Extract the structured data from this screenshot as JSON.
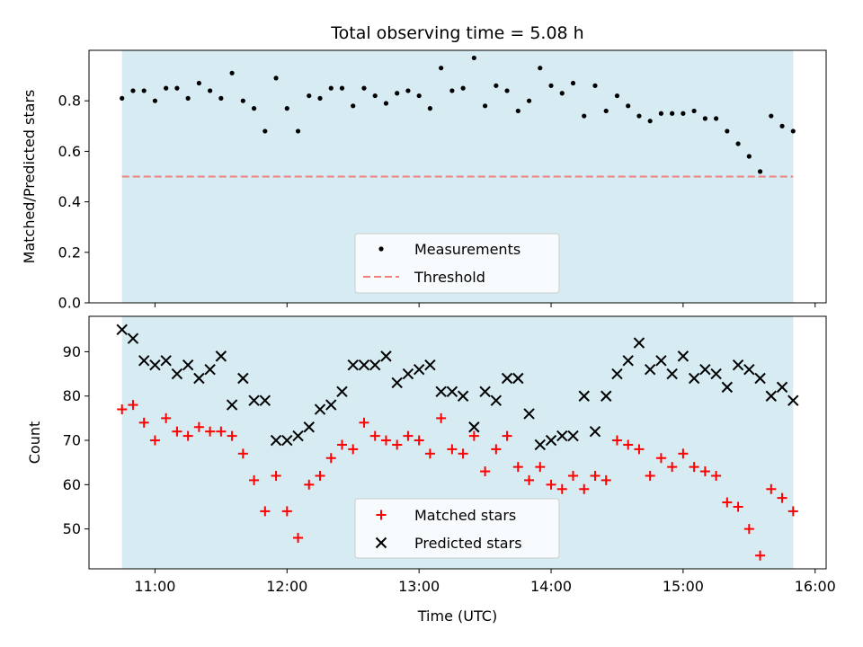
{
  "chart_data": [
    {
      "type": "scatter",
      "title": "Total observing time = 5.08 h",
      "xlabel": "",
      "ylabel": "Matched/Predicted stars",
      "ylim": [
        0,
        1.0
      ],
      "yticks": [
        "0.0",
        "0.2",
        "0.4",
        "0.6",
        "0.8"
      ],
      "xlim": [
        "10:30",
        "16:05"
      ],
      "shaded_span": [
        "10:45",
        "15:50"
      ],
      "shade_color": "#add8e6",
      "grid": false,
      "legend": {
        "placement": "lower center",
        "entries": [
          "Measurements",
          "Threshold"
        ]
      },
      "threshold": {
        "name": "Threshold",
        "value": 0.5,
        "color": "#f08080",
        "style": "dashed"
      },
      "series": [
        {
          "name": "Measurements",
          "marker": "dot",
          "color": "#000000",
          "x": [
            "10:45",
            "10:50",
            "10:55",
            "11:00",
            "11:05",
            "11:10",
            "11:15",
            "11:20",
            "11:25",
            "11:30",
            "11:35",
            "11:40",
            "11:45",
            "11:50",
            "11:55",
            "12:00",
            "12:05",
            "12:10",
            "12:15",
            "12:20",
            "12:25",
            "12:30",
            "12:35",
            "12:40",
            "12:45",
            "12:50",
            "12:55",
            "13:00",
            "13:05",
            "13:10",
            "13:15",
            "13:20",
            "13:25",
            "13:30",
            "13:35",
            "13:40",
            "13:45",
            "13:50",
            "13:55",
            "14:00",
            "14:05",
            "14:10",
            "14:15",
            "14:20",
            "14:25",
            "14:30",
            "14:35",
            "14:40",
            "14:45",
            "14:50",
            "14:55",
            "15:00",
            "15:05",
            "15:10",
            "15:15",
            "15:20",
            "15:25",
            "15:30",
            "15:35",
            "15:40",
            "15:45",
            "15:50"
          ],
          "y": [
            0.81,
            0.84,
            0.84,
            0.8,
            0.85,
            0.85,
            0.81,
            0.87,
            0.84,
            0.81,
            0.91,
            0.8,
            0.77,
            0.68,
            0.89,
            0.77,
            0.68,
            0.82,
            0.81,
            0.85,
            0.85,
            0.78,
            0.85,
            0.82,
            0.79,
            0.83,
            0.84,
            0.82,
            0.77,
            0.93,
            0.84,
            0.85,
            0.97,
            0.78,
            0.86,
            0.84,
            0.76,
            0.8,
            0.93,
            0.86,
            0.83,
            0.87,
            0.74,
            0.86,
            0.76,
            0.82,
            0.78,
            0.74,
            0.72,
            0.75,
            0.75,
            0.75,
            0.76,
            0.73,
            0.73,
            0.68,
            0.63,
            0.58,
            0.52,
            0.74,
            0.7,
            0.68
          ]
        }
      ]
    },
    {
      "type": "scatter",
      "title": "",
      "xlabel": "Time (UTC)",
      "ylabel": "Count",
      "ylim": [
        41,
        98
      ],
      "yticks": [
        "50",
        "60",
        "70",
        "80",
        "90"
      ],
      "xticks": [
        "11:00",
        "12:00",
        "13:00",
        "14:00",
        "15:00",
        "16:00"
      ],
      "xlim": [
        "10:30",
        "16:05"
      ],
      "shaded_span": [
        "10:45",
        "15:50"
      ],
      "shade_color": "#add8e6",
      "grid": false,
      "legend": {
        "placement": "lower center",
        "entries": [
          "Matched stars",
          "Predicted stars"
        ]
      },
      "series": [
        {
          "name": "Matched stars",
          "marker": "plus",
          "color": "#ff0000",
          "x": [
            "10:45",
            "10:50",
            "10:55",
            "11:00",
            "11:05",
            "11:10",
            "11:15",
            "11:20",
            "11:25",
            "11:30",
            "11:35",
            "11:40",
            "11:45",
            "11:50",
            "11:55",
            "12:00",
            "12:05",
            "12:10",
            "12:15",
            "12:20",
            "12:25",
            "12:30",
            "12:35",
            "12:40",
            "12:45",
            "12:50",
            "12:55",
            "13:00",
            "13:05",
            "13:10",
            "13:15",
            "13:20",
            "13:25",
            "13:30",
            "13:35",
            "13:40",
            "13:45",
            "13:50",
            "13:55",
            "14:00",
            "14:05",
            "14:10",
            "14:15",
            "14:20",
            "14:25",
            "14:30",
            "14:35",
            "14:40",
            "14:45",
            "14:50",
            "14:55",
            "15:00",
            "15:05",
            "15:10",
            "15:15",
            "15:20",
            "15:25",
            "15:30",
            "15:35",
            "15:40",
            "15:45",
            "15:50"
          ],
          "y": [
            77,
            78,
            74,
            70,
            75,
            72,
            71,
            73,
            72,
            72,
            71,
            67,
            61,
            54,
            62,
            54,
            48,
            60,
            62,
            66,
            69,
            68,
            74,
            71,
            70,
            69,
            71,
            70,
            67,
            75,
            68,
            67,
            71,
            63,
            68,
            71,
            64,
            61,
            64,
            60,
            59,
            62,
            59,
            62,
            61,
            70,
            69,
            68,
            62,
            66,
            64,
            67,
            64,
            63,
            62,
            56,
            55,
            50,
            44,
            59,
            57,
            54
          ]
        },
        {
          "name": "Predicted stars",
          "marker": "x",
          "color": "#000000",
          "x": [
            "10:45",
            "10:50",
            "10:55",
            "11:00",
            "11:05",
            "11:10",
            "11:15",
            "11:20",
            "11:25",
            "11:30",
            "11:35",
            "11:40",
            "11:45",
            "11:50",
            "11:55",
            "12:00",
            "12:05",
            "12:10",
            "12:15",
            "12:20",
            "12:25",
            "12:30",
            "12:35",
            "12:40",
            "12:45",
            "12:50",
            "12:55",
            "13:00",
            "13:05",
            "13:10",
            "13:15",
            "13:20",
            "13:25",
            "13:30",
            "13:35",
            "13:40",
            "13:45",
            "13:50",
            "13:55",
            "14:00",
            "14:05",
            "14:10",
            "14:15",
            "14:20",
            "14:25",
            "14:30",
            "14:35",
            "14:40",
            "14:45",
            "14:50",
            "14:55",
            "15:00",
            "15:05",
            "15:10",
            "15:15",
            "15:20",
            "15:25",
            "15:30",
            "15:35",
            "15:40",
            "15:45",
            "15:50"
          ],
          "y": [
            95,
            93,
            88,
            87,
            88,
            85,
            87,
            84,
            86,
            89,
            78,
            84,
            79,
            79,
            70,
            70,
            71,
            73,
            77,
            78,
            81,
            87,
            87,
            87,
            89,
            83,
            85,
            86,
            87,
            81,
            81,
            80,
            73,
            81,
            79,
            84,
            84,
            76,
            69,
            70,
            71,
            71,
            80,
            72,
            80,
            85,
            88,
            92,
            86,
            88,
            85,
            89,
            84,
            86,
            85,
            82,
            87,
            86,
            84,
            80,
            82,
            79
          ]
        }
      ]
    }
  ]
}
